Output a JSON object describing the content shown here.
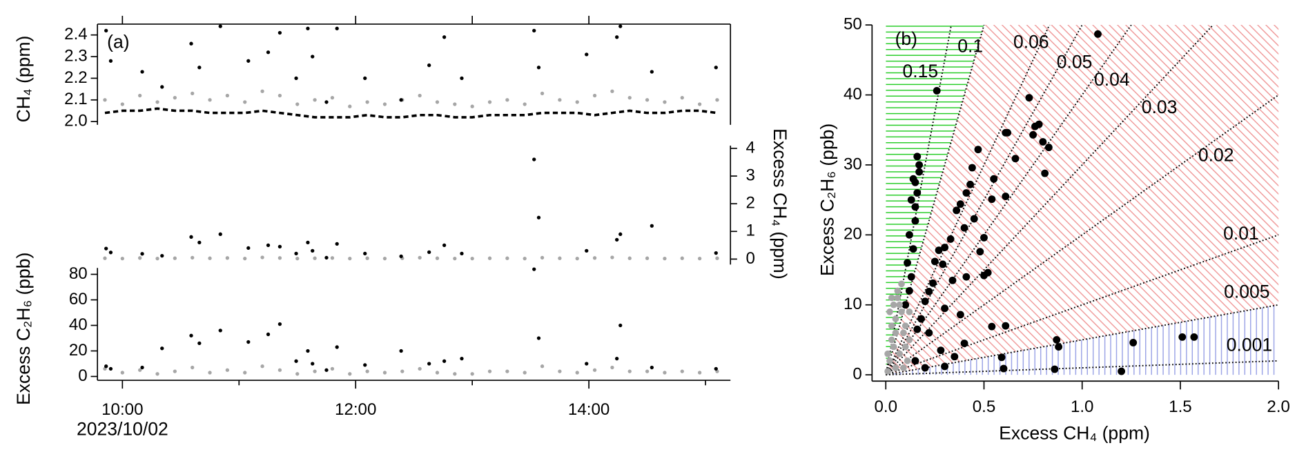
{
  "chart_data": [
    {
      "type": "scatter",
      "panel_label": "(a)",
      "ylabel": "CH₄ (ppm)",
      "xlim": [
        9.786,
        15.214
      ],
      "xminor_ticks": [
        10,
        12,
        13,
        14
      ],
      "xtick_side": "top",
      "ylim": [
        1.985,
        2.45
      ],
      "yticks": [
        {
          "value": 2,
          "label": "2.0"
        },
        2.1,
        2.2,
        2.3,
        2.4
      ],
      "yaxis_side": "left",
      "series": [
        {
          "color": "#a6a6a6",
          "style": "dots",
          "x": [
            9.85,
            10.0,
            10.15,
            10.3,
            10.45,
            10.6,
            10.75,
            10.9,
            11.05,
            11.2,
            11.35,
            11.5,
            11.65,
            11.8,
            11.95,
            12.1,
            12.25,
            12.4,
            12.55,
            12.7,
            12.85,
            13.0,
            13.15,
            13.3,
            13.45,
            13.6,
            13.75,
            13.9,
            14.05,
            14.2,
            14.35,
            14.5,
            14.65,
            14.8,
            14.95,
            15.1
          ],
          "values": [
            2.1,
            2.08,
            2.12,
            2.09,
            2.11,
            2.13,
            2.1,
            2.12,
            2.09,
            2.14,
            2.12,
            2.08,
            2.1,
            2.11,
            2.07,
            2.09,
            2.08,
            2.1,
            2.12,
            2.09,
            2.08,
            2.07,
            2.09,
            2.1,
            2.08,
            2.13,
            2.1,
            2.09,
            2.12,
            2.14,
            2.11,
            2.1,
            2.09,
            2.11,
            2.08,
            2.1
          ]
        },
        {
          "color": "#000000",
          "style": "dots",
          "x": [
            9.86,
            9.9,
            10.17,
            10.34,
            10.59,
            10.66,
            10.84,
            11.08,
            11.25,
            11.35,
            11.49,
            11.59,
            11.63,
            11.75,
            11.84,
            12.08,
            12.39,
            12.63,
            12.76,
            12.91,
            13.53,
            13.57,
            13.98,
            14.24,
            14.27,
            14.54,
            15.09
          ],
          "values": [
            2.42,
            2.28,
            2.23,
            2.16,
            2.36,
            2.25,
            2.44,
            2.28,
            2.32,
            2.41,
            2.2,
            2.43,
            2.3,
            2.09,
            2.43,
            2.2,
            2.1,
            2.26,
            2.39,
            2.2,
            2.42,
            2.25,
            2.31,
            2.39,
            2.44,
            2.23,
            2.25
          ]
        },
        {
          "color": "#000000",
          "style": "dashed",
          "x": [
            9.85,
            10.0,
            10.15,
            10.3,
            10.45,
            10.6,
            10.75,
            10.9,
            11.05,
            11.2,
            11.35,
            11.5,
            11.65,
            11.8,
            11.95,
            12.1,
            12.25,
            12.4,
            12.55,
            12.7,
            12.85,
            13.0,
            13.15,
            13.3,
            13.45,
            13.6,
            13.75,
            13.9,
            14.05,
            14.2,
            14.35,
            14.5,
            14.65,
            14.8,
            14.95,
            15.1
          ],
          "values": [
            2.04,
            2.05,
            2.05,
            2.06,
            2.05,
            2.05,
            2.04,
            2.04,
            2.04,
            2.05,
            2.04,
            2.03,
            2.02,
            2.02,
            2.02,
            2.03,
            2.02,
            2.02,
            2.03,
            2.03,
            2.02,
            2.02,
            2.03,
            2.03,
            2.03,
            2.04,
            2.04,
            2.04,
            2.03,
            2.04,
            2.05,
            2.04,
            2.04,
            2.05,
            2.05,
            2.04
          ]
        }
      ]
    },
    {
      "type": "scatter",
      "ylabel": "Excess CH₄ (ppm)",
      "xlim": [
        9.786,
        15.214
      ],
      "ylim": [
        -0.2,
        4.1
      ],
      "yticks": [
        0,
        1,
        2,
        3,
        4
      ],
      "yaxis_side": "right",
      "series": [
        {
          "color": "#a6a6a6",
          "style": "dots",
          "x": [
            9.85,
            10.0,
            10.15,
            10.3,
            10.45,
            10.6,
            10.75,
            10.9,
            11.05,
            11.2,
            11.35,
            11.5,
            11.65,
            11.8,
            11.95,
            12.1,
            12.25,
            12.4,
            12.55,
            12.7,
            12.85,
            13.0,
            13.15,
            13.3,
            13.45,
            13.6,
            13.75,
            13.9,
            14.05,
            14.2,
            14.35,
            14.5,
            14.65,
            14.8,
            14.95,
            15.1
          ],
          "values": [
            0.03,
            0.02,
            0.04,
            0.02,
            0.03,
            0.05,
            0.03,
            0.04,
            0.02,
            0.06,
            0.04,
            0.02,
            0.03,
            0.04,
            0.02,
            0.03,
            0.02,
            0.03,
            0.05,
            0.03,
            0.02,
            0.02,
            0.03,
            0.03,
            0.02,
            0.05,
            0.03,
            0.02,
            0.04,
            0.06,
            0.03,
            0.03,
            0.02,
            0.03,
            0.02,
            0.03
          ]
        },
        {
          "color": "#000000",
          "style": "dots",
          "x": [
            9.86,
            9.9,
            10.17,
            10.34,
            10.59,
            10.66,
            10.84,
            11.08,
            11.25,
            11.35,
            11.49,
            11.59,
            11.63,
            11.75,
            11.84,
            12.08,
            12.39,
            12.63,
            12.76,
            12.91,
            13.53,
            13.57,
            13.98,
            14.24,
            14.27,
            14.54,
            15.09
          ],
          "values": [
            0.38,
            0.24,
            0.19,
            0.12,
            0.8,
            0.6,
            0.9,
            0.4,
            0.5,
            0.45,
            0.2,
            0.6,
            0.3,
            0.05,
            0.55,
            0.2,
            0.1,
            0.25,
            0.5,
            0.2,
            3.6,
            1.5,
            0.3,
            0.7,
            0.9,
            1.2,
            0.22
          ]
        }
      ]
    },
    {
      "type": "scatter",
      "ylabel": "Excess C₂H₆ (ppb)",
      "date_label": "2023/10/02",
      "xlim": [
        9.786,
        15.214
      ],
      "xticks": [
        {
          "value": 10,
          "label": "10:00"
        },
        {
          "value": 12,
          "label": "12:00"
        },
        {
          "value": 14,
          "label": "14:00"
        }
      ],
      "xminor_ticks": [
        11,
        13,
        15
      ],
      "xtick_side": "bottom",
      "ylim": [
        -3,
        85
      ],
      "yticks": [
        0,
        20,
        40,
        60,
        80
      ],
      "yaxis_side": "left",
      "series": [
        {
          "color": "#a6a6a6",
          "style": "dots",
          "x": [
            9.85,
            10.0,
            10.15,
            10.3,
            10.45,
            10.6,
            10.75,
            10.9,
            11.05,
            11.2,
            11.35,
            11.5,
            11.65,
            11.8,
            11.95,
            12.1,
            12.25,
            12.4,
            12.55,
            12.7,
            12.85,
            13.0,
            13.15,
            13.3,
            13.45,
            13.6,
            13.75,
            13.9,
            14.05,
            14.2,
            14.35,
            14.5,
            14.65,
            14.8,
            14.95,
            15.1
          ],
          "values": [
            6,
            3,
            5,
            2,
            4,
            7,
            3,
            5,
            3,
            8,
            5,
            2,
            4,
            6,
            2,
            4,
            3,
            4,
            6,
            3,
            2,
            2,
            4,
            4,
            3,
            8,
            4,
            3,
            5,
            7,
            4,
            4,
            3,
            4,
            3,
            4
          ]
        },
        {
          "color": "#000000",
          "style": "dots",
          "x": [
            9.86,
            9.9,
            10.17,
            10.34,
            10.59,
            10.66,
            10.84,
            11.08,
            11.25,
            11.35,
            11.49,
            11.59,
            11.63,
            11.75,
            11.84,
            12.08,
            12.39,
            12.63,
            12.76,
            12.91,
            13.53,
            13.57,
            13.98,
            14.24,
            14.27,
            14.54,
            15.09
          ],
          "values": [
            8,
            6,
            7,
            22,
            32,
            26,
            36,
            27,
            33,
            41,
            12,
            20,
            10,
            5,
            23,
            9,
            20,
            10,
            12,
            14,
            84,
            30,
            10,
            14,
            40,
            7,
            6
          ]
        }
      ]
    },
    {
      "type": "scatter",
      "panel_label": "(b)",
      "xlabel": "Excess CH₄ (ppm)",
      "ylabel": "Excess C₂H₆ (ppb)",
      "xlim": [
        -0.07,
        2.0
      ],
      "xticks": [
        {
          "value": 0,
          "label": "0.0"
        },
        0.5,
        {
          "value": 1,
          "label": "1.0"
        },
        1.5,
        {
          "value": 2,
          "label": "2.0"
        }
      ],
      "xtick_side": "bottom",
      "ylim": [
        -0.9,
        50
      ],
      "yticks": [
        0,
        10,
        20,
        30,
        40,
        50
      ],
      "yaxis_side": "left",
      "regions": [
        {
          "min_ratio": 0.1,
          "color": "#22cc22",
          "hatch": "horizontal"
        },
        {
          "min_ratio": 0.005,
          "color": "#f09a9a",
          "hatch": "diagonal"
        },
        {
          "min_ratio": 0,
          "color": "#9aa2e6",
          "hatch": "vertical"
        }
      ],
      "ratios": [
        0.15,
        0.1,
        0.06,
        0.05,
        0.04,
        0.03,
        0.02,
        0.01,
        0.005,
        0.001
      ],
      "series": [
        {
          "color": "#000000",
          "style": "dots",
          "x": [
            1.08,
            0.26,
            0.73,
            0.76,
            0.78,
            0.75,
            0.8,
            0.61,
            0.62,
            0.47,
            0.66,
            0.44,
            0.83,
            0.81,
            0.55,
            0.43,
            0.41,
            0.61,
            0.54,
            0.38,
            0.36,
            0.45,
            0.4,
            0.33,
            0.5,
            0.3,
            0.48,
            0.27,
            0.29,
            0.25,
            0.52,
            0.5,
            0.41,
            0.34,
            0.24,
            0.22,
            0.2,
            0.3,
            0.38,
            0.18,
            0.16,
            0.22,
            0.54,
            0.61,
            0.87,
            0.88,
            1.26,
            1.51,
            1.57,
            0.4,
            0.28,
            0.35,
            0.59,
            0.6,
            0.86,
            1.2,
            0.3,
            0.2,
            0.15,
            0.14,
            0.16,
            0.15,
            0.17,
            0.13,
            0.15,
            0.12,
            0.14,
            0.11,
            0.13,
            0.12,
            0.1,
            0.15,
            0.16,
            0.17
          ],
          "values": [
            48.7,
            40.6,
            39.6,
            35.5,
            35.8,
            34.3,
            33.3,
            34.6,
            34.6,
            32.2,
            30.9,
            29.6,
            32.5,
            28.8,
            28.0,
            27.2,
            26.0,
            25.5,
            25.1,
            24.4,
            23.5,
            22.3,
            21.0,
            19.4,
            19.6,
            18.2,
            17.6,
            17.8,
            15.8,
            16.2,
            14.6,
            14.2,
            14.0,
            13.5,
            13.1,
            11.9,
            10.5,
            9.5,
            8.6,
            8.0,
            6.5,
            6.0,
            6.9,
            7.0,
            5.0,
            4.0,
            4.6,
            5.4,
            5.4,
            4.5,
            3.5,
            2.6,
            2.5,
            0.9,
            0.8,
            0.5,
            1.2,
            1.0,
            2.0,
            28.0,
            31.2,
            27.5,
            30.0,
            25.0,
            22.0,
            20.0,
            18.0,
            16.0,
            14.0,
            12.0,
            10.0,
            24.0,
            26.0,
            29.0
          ]
        },
        {
          "color": "#a6a6a6",
          "style": "dots",
          "x": [
            0.02,
            0.03,
            0.05,
            0.06,
            0.04,
            0.08,
            0.09,
            0.1,
            0.07,
            0.05,
            0.01,
            0.03,
            0.06,
            0.08,
            0.02,
            0.04,
            0.1,
            0.11,
            0.12,
            0.09,
            0.07,
            0.03,
            0.05,
            0.01,
            0.12
          ],
          "values": [
            2,
            5,
            8,
            12,
            10,
            9,
            6,
            4,
            3,
            1,
            0.5,
            7,
            11,
            13,
            9,
            4,
            7,
            2,
            5,
            1,
            10,
            11,
            6,
            3,
            9
          ]
        }
      ]
    }
  ]
}
